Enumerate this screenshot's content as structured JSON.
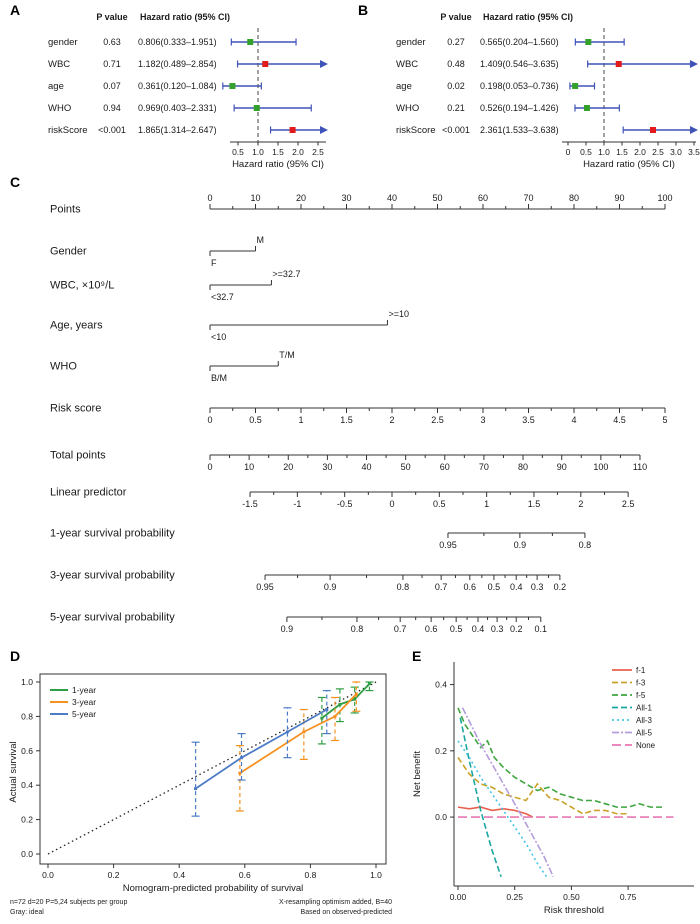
{
  "colors": {
    "ci_line": "#4053b8",
    "hr_low": "#33a02c",
    "hr_high": "#e31a1c"
  },
  "chart_data": [
    {
      "panel": "A",
      "label": "A",
      "type": "forest",
      "headers": {
        "p": "P value",
        "hr": "Hazard ratio (95% CI)"
      },
      "rows": [
        {
          "name": "gender",
          "p": "0.63",
          "ci": "0.806(0.333–1.951)",
          "hr": 0.806,
          "lo": 0.333,
          "hi": 1.951
        },
        {
          "name": "WBC",
          "p": "0.71",
          "ci": "1.182(0.489–2.854)",
          "hr": 1.182,
          "lo": 0.489,
          "hi": 2.854
        },
        {
          "name": "age",
          "p": "0.07",
          "ci": "0.361(0.120–1.084)",
          "hr": 0.361,
          "lo": 0.12,
          "hi": 1.084
        },
        {
          "name": "WHO",
          "p": "0.94",
          "ci": "0.969(0.403–2.331)",
          "hr": 0.969,
          "lo": 0.403,
          "hi": 2.331
        },
        {
          "name": "riskScore",
          "p": "<0.001",
          "ci": "1.865(1.314–2.647)",
          "hr": 1.865,
          "lo": 1.314,
          "hi": 2.647
        }
      ],
      "axis": {
        "ticks": [
          0.5,
          1,
          1.5,
          2,
          2.5
        ],
        "tick_labels": [
          "0.5",
          "1.0",
          "1.5",
          "2.0",
          "2.5"
        ],
        "ref": 1,
        "label": "Hazard ratio (95% CI)"
      }
    },
    {
      "panel": "B",
      "label": "B",
      "type": "forest",
      "headers": {
        "p": "P value",
        "hr": "Hazard ratio (95% CI)"
      },
      "rows": [
        {
          "name": "gender",
          "p": "0.27",
          "ci": "0.565(0.204–1.560)",
          "hr": 0.565,
          "lo": 0.204,
          "hi": 1.56
        },
        {
          "name": "WBC",
          "p": "0.48",
          "ci": "1.409(0.546–3.635)",
          "hr": 1.409,
          "lo": 0.546,
          "hi": 3.635
        },
        {
          "name": "age",
          "p": "0.02",
          "ci": "0.198(0.053–0.736)",
          "hr": 0.198,
          "lo": 0.053,
          "hi": 0.736
        },
        {
          "name": "WHO",
          "p": "0.21",
          "ci": "0.526(0.194–1.426)",
          "hr": 0.526,
          "lo": 0.194,
          "hi": 1.426
        },
        {
          "name": "riskScore",
          "p": "<0.001",
          "ci": "2.361(1.533–3.638)",
          "hr": 2.361,
          "lo": 1.533,
          "hi": 3.638
        }
      ],
      "axis": {
        "ticks": [
          0,
          0.5,
          1,
          1.5,
          2,
          2.5,
          3,
          3.5
        ],
        "tick_labels": [
          "0",
          "0.5",
          "1.0",
          "1.5",
          "2.0",
          "2.5",
          "3.0",
          "3.5"
        ],
        "ref": 1,
        "label": "Hazard ratio (95% CI)"
      }
    },
    {
      "panel": "C",
      "label": "C",
      "type": "nomogram",
      "rows": [
        {
          "name": "Points",
          "type": "scale",
          "side": "above",
          "ticks": [
            [
              0,
              "0"
            ],
            [
              0.1,
              "10"
            ],
            [
              0.2,
              "20"
            ],
            [
              0.3,
              "30"
            ],
            [
              0.4,
              "40"
            ],
            [
              0.5,
              "50"
            ],
            [
              0.6,
              "60"
            ],
            [
              0.7,
              "70"
            ],
            [
              0.8,
              "80"
            ],
            [
              0.9,
              "90"
            ],
            [
              1,
              "100"
            ]
          ]
        },
        {
          "name": "Gender",
          "type": "cat",
          "end": 0.1,
          "top": "M",
          "bottom": "F"
        },
        {
          "name": "WBC, ×10⁹/L",
          "type": "cat",
          "end": 0.135,
          "top": ">=32.7",
          "bottom": "<32.7"
        },
        {
          "name": "Age, years",
          "type": "cat",
          "end": 0.39,
          "top": ">=10",
          "bottom": "<10"
        },
        {
          "name": "WHO",
          "type": "cat",
          "end": 0.15,
          "top": "T/M",
          "bottom": "B/M"
        },
        {
          "name": "Risk score",
          "type": "scale",
          "side": "below",
          "ticks": [
            [
              0,
              "0"
            ],
            [
              0.1,
              "0.5"
            ],
            [
              0.2,
              "1"
            ],
            [
              0.3,
              "1.5"
            ],
            [
              0.4,
              "2"
            ],
            [
              0.5,
              "2.5"
            ],
            [
              0.6,
              "3"
            ],
            [
              0.7,
              "3.5"
            ],
            [
              0.8,
              "4"
            ],
            [
              0.9,
              "4.5"
            ],
            [
              1,
              "5"
            ]
          ]
        },
        {
          "name": "Total points",
          "type": "scale",
          "side": "below",
          "ticks": [
            [
              0,
              "0"
            ],
            [
              0.086,
              "10"
            ],
            [
              0.172,
              "20"
            ],
            [
              0.258,
              "30"
            ],
            [
              0.344,
              "40"
            ],
            [
              0.43,
              "50"
            ],
            [
              0.516,
              "60"
            ],
            [
              0.602,
              "70"
            ],
            [
              0.688,
              "80"
            ],
            [
              0.773,
              "90"
            ],
            [
              0.859,
              "100"
            ],
            [
              0.945,
              "110"
            ]
          ]
        },
        {
          "name": "Linear predictor",
          "type": "scale",
          "side": "below",
          "ticks": [
            [
              0.088,
              "-1.5"
            ],
            [
              0.192,
              "-1"
            ],
            [
              0.296,
              "-0.5"
            ],
            [
              0.4,
              "0"
            ],
            [
              0.504,
              "0.5"
            ],
            [
              0.608,
              "1"
            ],
            [
              0.712,
              "1.5"
            ],
            [
              0.815,
              "2"
            ],
            [
              0.919,
              "2.5"
            ]
          ]
        },
        {
          "name": "1-year survival probability",
          "type": "scale",
          "side": "below",
          "ticks": [
            [
              0.523,
              "0.95"
            ],
            [
              0.681,
              "0.9"
            ],
            [
              0.824,
              "0.8"
            ]
          ]
        },
        {
          "name": "3-year survival probability",
          "type": "scale",
          "side": "below",
          "ticks": [
            [
              0.121,
              "0.95"
            ],
            [
              0.264,
              "0.9"
            ],
            [
              0.424,
              "0.8"
            ],
            [
              0.508,
              "0.7"
            ],
            [
              0.571,
              "0.6"
            ],
            [
              0.624,
              "0.5"
            ],
            [
              0.673,
              "0.4"
            ],
            [
              0.719,
              "0.3"
            ],
            [
              0.769,
              "0.2"
            ]
          ]
        },
        {
          "name": "5-year survival probability",
          "type": "scale",
          "side": "below",
          "ticks": [
            [
              0.169,
              "0.9"
            ],
            [
              0.323,
              "0.8"
            ],
            [
              0.418,
              "0.7"
            ],
            [
              0.486,
              "0.6"
            ],
            [
              0.541,
              "0.5"
            ],
            [
              0.589,
              "0.4"
            ],
            [
              0.631,
              "0.3"
            ],
            [
              0.673,
              "0.2"
            ],
            [
              0.727,
              "0.1"
            ]
          ]
        }
      ]
    },
    {
      "panel": "D",
      "label": "D",
      "type": "calibration",
      "xlabel": "Nomogram-predicted probability of survival",
      "ylabel": "Actual survival",
      "xticks": [
        "0.0",
        "0.2",
        "0.4",
        "0.6",
        "0.8",
        "1.0"
      ],
      "yticks": [
        "0.0",
        "0.2",
        "0.4",
        "0.6",
        "0.8",
        "1.0"
      ],
      "ideal": "Gray: ideal",
      "series": [
        {
          "name": "1-year",
          "color": "#2f9e44",
          "x": [
            0.835,
            0.89,
            0.935,
            0.98
          ],
          "y": [
            0.79,
            0.87,
            0.9,
            0.99
          ],
          "lo": [
            0.64,
            0.77,
            0.82,
            0.95
          ],
          "hi": [
            0.91,
            0.96,
            0.97,
            1.0
          ]
        },
        {
          "name": "3-year",
          "color": "#f59120",
          "x": [
            0.585,
            0.78,
            0.875,
            0.94
          ],
          "y": [
            0.47,
            0.71,
            0.8,
            0.93
          ],
          "lo": [
            0.25,
            0.55,
            0.66,
            0.83
          ],
          "hi": [
            0.63,
            0.84,
            0.91,
            1.0
          ]
        },
        {
          "name": "5-year",
          "color": "#4d7cc7",
          "x": [
            0.45,
            0.59,
            0.73,
            0.85
          ],
          "y": [
            0.38,
            0.56,
            0.71,
            0.84
          ],
          "lo": [
            0.22,
            0.43,
            0.56,
            0.7
          ],
          "hi": [
            0.65,
            0.7,
            0.85,
            0.95
          ]
        }
      ],
      "footnotes": {
        "left1": "n=72 d=20 P=5,24 subjects per group",
        "left2": "Gray: ideal",
        "right1": "X-resampling optimism added, B=40",
        "right2": "Based on observed-predicted"
      }
    },
    {
      "panel": "E",
      "label": "E",
      "type": "dca",
      "xlabel": "Risk threshold",
      "ylabel": "Net benefit",
      "xticks": [
        {
          "v": 0,
          "t": "0.00"
        },
        {
          "v": 0.25,
          "t": "0.25"
        },
        {
          "v": 0.5,
          "t": "0.50"
        },
        {
          "v": 0.75,
          "t": "0.75"
        }
      ],
      "yticks": [
        {
          "v": 0,
          "t": "0.0"
        },
        {
          "v": 0.2,
          "t": "0.2"
        },
        {
          "v": 0.4,
          "t": "0.4"
        }
      ],
      "series": [
        {
          "name": "f-1",
          "color": "#e8604c",
          "dash": "",
          "x": [
            0,
            0.05,
            0.1,
            0.15,
            0.2,
            0.25,
            0.3,
            0.33
          ],
          "y": [
            0.03,
            0.025,
            0.03,
            0.02,
            0.025,
            0.02,
            0.01,
            0.0
          ]
        },
        {
          "name": "f-3",
          "color": "#c9a227",
          "dash": "6,3",
          "x": [
            0,
            0.05,
            0.1,
            0.15,
            0.2,
            0.25,
            0.3,
            0.35,
            0.4,
            0.45,
            0.5,
            0.55,
            0.6,
            0.65,
            0.7,
            0.75
          ],
          "y": [
            0.18,
            0.13,
            0.1,
            0.09,
            0.07,
            0.06,
            0.05,
            0.1,
            0.06,
            0.05,
            0.03,
            0.01,
            0.02,
            0.02,
            0.01,
            0.01
          ]
        },
        {
          "name": "f-5",
          "color": "#3fa53f",
          "dash": "6,3",
          "x": [
            0,
            0.03,
            0.06,
            0.1,
            0.13,
            0.16,
            0.2,
            0.25,
            0.3,
            0.35,
            0.4,
            0.45,
            0.5,
            0.55,
            0.6,
            0.65,
            0.7,
            0.75,
            0.8,
            0.85,
            0.9
          ],
          "y": [
            0.33,
            0.28,
            0.25,
            0.21,
            0.23,
            0.18,
            0.15,
            0.12,
            0.1,
            0.08,
            0.09,
            0.07,
            0.06,
            0.05,
            0.05,
            0.04,
            0.03,
            0.03,
            0.04,
            0.03,
            0.03
          ]
        },
        {
          "name": "All-1",
          "color": "#1aa7a0",
          "dash": "6,3",
          "x": [
            0.01,
            0.05,
            0.1,
            0.15,
            0.19
          ],
          "y": [
            0.3,
            0.17,
            0.02,
            -0.1,
            -0.18
          ]
        },
        {
          "name": "All-3",
          "color": "#45c5e8",
          "dash": "2,3",
          "x": [
            0,
            0.05,
            0.1,
            0.15,
            0.2,
            0.25,
            0.3,
            0.35,
            0.39
          ],
          "y": [
            0.23,
            0.18,
            0.12,
            0.07,
            0.02,
            -0.03,
            -0.08,
            -0.14,
            -0.18
          ]
        },
        {
          "name": "All-5",
          "color": "#b49ddb",
          "dash": "7,2,2,2",
          "x": [
            0.02,
            0.1,
            0.2,
            0.3,
            0.38,
            0.42
          ],
          "y": [
            0.33,
            0.22,
            0.1,
            -0.02,
            -0.12,
            -0.18
          ]
        },
        {
          "name": "None",
          "color": "#e878b4",
          "dash": "9,4",
          "x": [
            0,
            0.95
          ],
          "y": [
            0,
            0
          ]
        }
      ]
    }
  ]
}
